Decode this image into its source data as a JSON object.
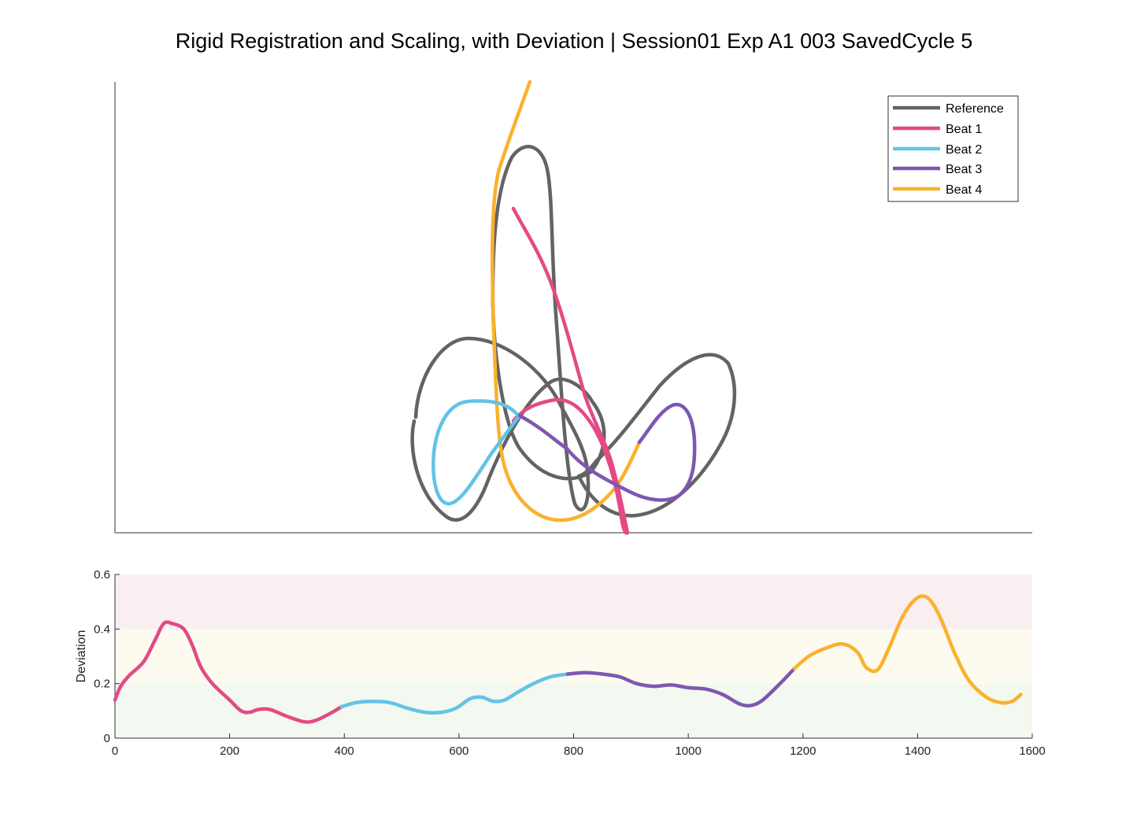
{
  "chart_data": [
    {
      "type": "line",
      "title": "Rigid Registration and Scaling, with Deviation | Session01 Exp A1 003 SavedCycle 5",
      "axes_visible": "left and bottom lines only, no ticks",
      "legend": {
        "placement": "top-right",
        "entries": [
          "Reference",
          "Beat 1",
          "Beat 2",
          "Beat 3",
          "Beat 4"
        ]
      },
      "colors": {
        "Reference": "#636363",
        "Beat 1": "#e34a86",
        "Beat 2": "#62c3e6",
        "Beat 3": "#7e57b1",
        "Beat 4": "#fbb12c"
      }
    },
    {
      "type": "line",
      "ylabel": "Deviation",
      "xlabel": "",
      "xlim": [
        0,
        1600
      ],
      "ylim": [
        0,
        0.6
      ],
      "xticks": [
        "0",
        "200",
        "400",
        "600",
        "800",
        "1000",
        "1200",
        "1400",
        "1600"
      ],
      "yticks": [
        "0",
        "0.2",
        "0.4",
        "0.6"
      ],
      "bands": [
        {
          "from": 0,
          "to": 0.2,
          "color": "#f3f8f0"
        },
        {
          "from": 0.2,
          "to": 0.4,
          "color": "#fdfbf0"
        },
        {
          "from": 0.4,
          "to": 0.6,
          "color": "#f9eff1"
        }
      ],
      "series": [
        {
          "beat": "Beat 1",
          "color": "#e34a86",
          "x": [
            0,
            10,
            25,
            50,
            70,
            85,
            100,
            120,
            135,
            150,
            170,
            200,
            220,
            235,
            250,
            270,
            300,
            330,
            350,
            375,
            395
          ],
          "y": [
            0.14,
            0.19,
            0.23,
            0.28,
            0.36,
            0.42,
            0.42,
            0.4,
            0.34,
            0.26,
            0.2,
            0.14,
            0.1,
            0.095,
            0.105,
            0.105,
            0.08,
            0.06,
            0.065,
            0.09,
            0.115
          ]
        },
        {
          "beat": "Beat 2",
          "color": "#62c3e6",
          "x": [
            395,
            420,
            450,
            480,
            510,
            540,
            570,
            595,
            620,
            640,
            660,
            680,
            700,
            730,
            760,
            790
          ],
          "y": [
            0.115,
            0.13,
            0.135,
            0.13,
            0.11,
            0.095,
            0.095,
            0.11,
            0.145,
            0.15,
            0.135,
            0.14,
            0.165,
            0.2,
            0.225,
            0.235
          ]
        },
        {
          "beat": "Beat 3",
          "color": "#7e57b1",
          "x": [
            790,
            820,
            850,
            880,
            910,
            940,
            970,
            1000,
            1030,
            1060,
            1090,
            1110,
            1130,
            1160,
            1185
          ],
          "y": [
            0.235,
            0.24,
            0.235,
            0.225,
            0.2,
            0.19,
            0.195,
            0.185,
            0.18,
            0.16,
            0.125,
            0.12,
            0.14,
            0.2,
            0.255
          ]
        },
        {
          "beat": "Beat 4",
          "color": "#fbb12c",
          "x": [
            1185,
            1210,
            1240,
            1270,
            1295,
            1310,
            1330,
            1350,
            1375,
            1400,
            1420,
            1440,
            1465,
            1490,
            1520,
            1545,
            1565,
            1580
          ],
          "y": [
            0.255,
            0.3,
            0.33,
            0.345,
            0.315,
            0.26,
            0.25,
            0.33,
            0.45,
            0.515,
            0.51,
            0.44,
            0.31,
            0.21,
            0.15,
            0.13,
            0.135,
            0.16
          ]
        }
      ]
    }
  ]
}
